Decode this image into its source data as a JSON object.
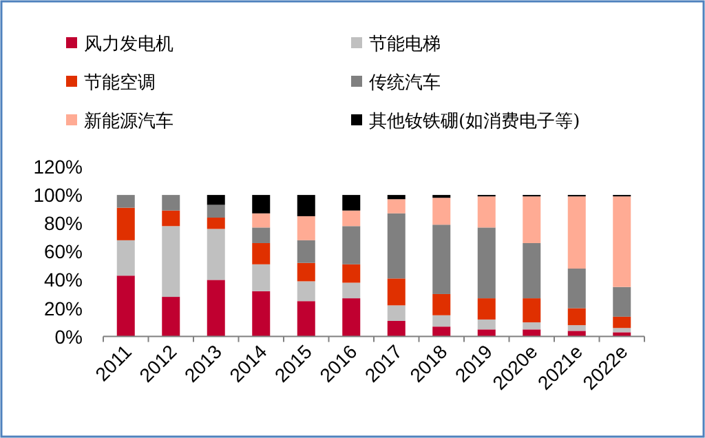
{
  "chart_data": {
    "type": "bar",
    "stacked": true,
    "legend": "top",
    "grid": false,
    "categories": [
      "2011",
      "2012",
      "2013",
      "2014",
      "2015",
      "2016",
      "2017",
      "2018",
      "2019",
      "2020e",
      "2021e",
      "2022e"
    ],
    "ylim": [
      0,
      120
    ],
    "yticks": [
      {
        "value": 0,
        "label": "0%"
      },
      {
        "value": 20,
        "label": "20%"
      },
      {
        "value": 40,
        "label": "40%"
      },
      {
        "value": 60,
        "label": "60%"
      },
      {
        "value": 80,
        "label": "80%"
      },
      {
        "value": 100,
        "label": "100%"
      },
      {
        "value": 120,
        "label": "120%"
      }
    ],
    "series": [
      {
        "name": "风力发电机",
        "color": "#c00030",
        "values": [
          43,
          28,
          40,
          32,
          25,
          27,
          11,
          7,
          5,
          5,
          4,
          3
        ]
      },
      {
        "name": "节能电梯",
        "color": "#c0c0c0",
        "values": [
          25,
          50,
          36,
          19,
          14,
          11,
          11,
          8,
          7,
          5,
          4,
          3
        ]
      },
      {
        "name": "节能空调",
        "color": "#e03000",
        "values": [
          23,
          11,
          8,
          15,
          13,
          13,
          19,
          15,
          15,
          17,
          12,
          8
        ]
      },
      {
        "name": "传统汽车",
        "color": "#808080",
        "values": [
          9,
          11,
          9,
          11,
          16,
          27,
          46,
          49,
          50,
          39,
          28,
          21
        ]
      },
      {
        "name": "新能源汽车",
        "color": "#ffab94",
        "values": [
          0,
          0,
          0,
          10,
          17,
          11,
          10,
          19,
          22,
          33,
          51,
          64
        ]
      },
      {
        "name": "其他钕铁硼(如消费电子等)",
        "color": "#000000",
        "values": [
          0,
          0,
          7,
          13,
          15,
          11,
          3,
          2,
          1,
          1,
          1,
          1
        ]
      }
    ]
  }
}
